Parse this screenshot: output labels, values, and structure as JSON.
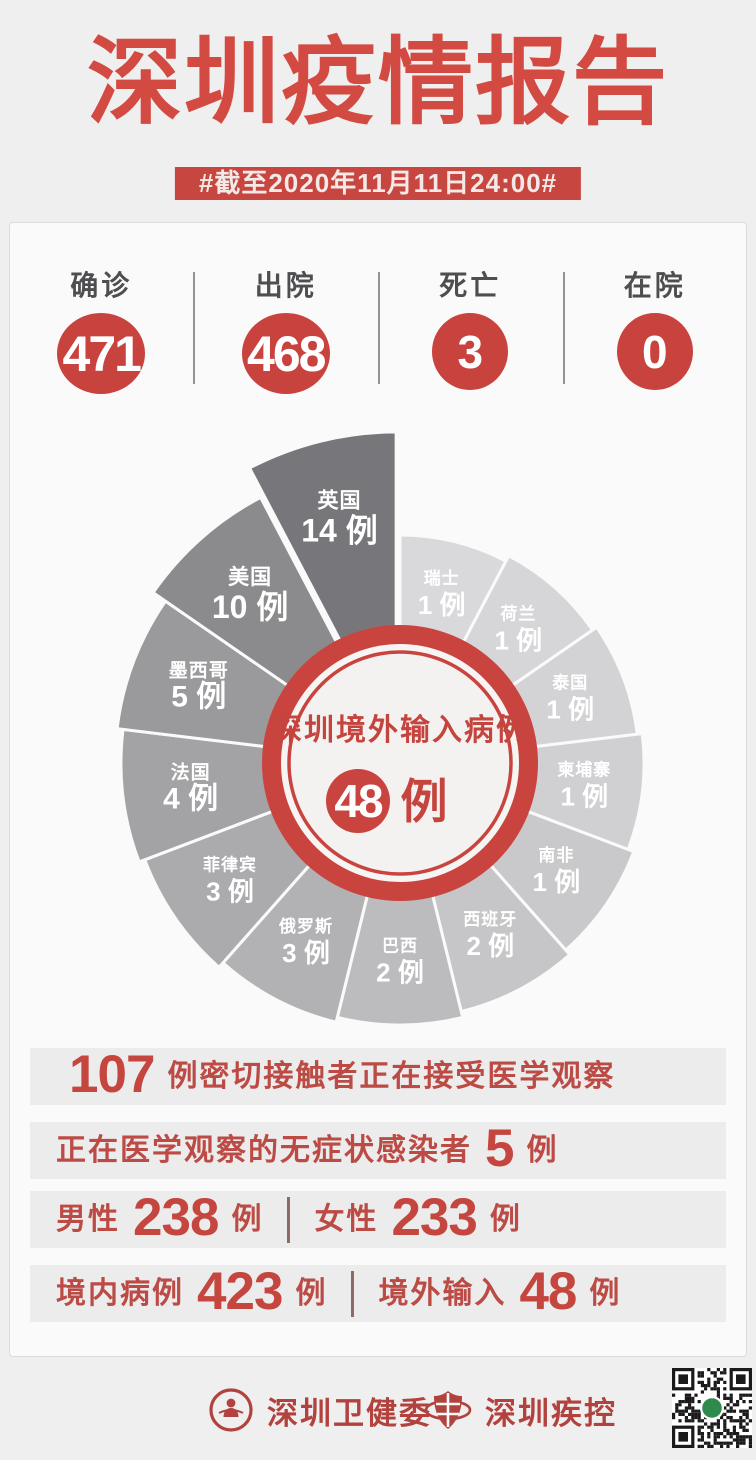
{
  "page": {
    "background": "#f0efef",
    "accent_red": "#c8423e",
    "title_red": "#d24a42"
  },
  "header": {
    "title": "深圳疫情报告",
    "date_banner": "#截至2020年11月11日24:00#"
  },
  "summary_stats": [
    {
      "label": "确诊",
      "value": "471",
      "size": "big"
    },
    {
      "label": "出院",
      "value": "468",
      "size": "big"
    },
    {
      "label": "死亡",
      "value": "3",
      "size": "small"
    },
    {
      "label": "在院",
      "value": "0",
      "size": "small"
    }
  ],
  "chart_data": {
    "type": "pie",
    "variant": "rose-fan, equal 27.7° slices, radius and darkness grow with value, largest slice exploded",
    "title": "深圳境外输入病例",
    "center_label": "深圳境外输入病例",
    "center_value": "48",
    "center_unit": "例",
    "unit": "例",
    "total": 48,
    "order": "clockwise from 12 o'clock",
    "slices": [
      {
        "name": "瑞士",
        "value": 1
      },
      {
        "name": "荷兰",
        "value": 1
      },
      {
        "name": "泰国",
        "value": 1
      },
      {
        "name": "柬埔寨",
        "value": 1
      },
      {
        "name": "南非",
        "value": 1
      },
      {
        "name": "西班牙",
        "value": 2
      },
      {
        "name": "巴西",
        "value": 2
      },
      {
        "name": "俄罗斯",
        "value": 3
      },
      {
        "name": "菲律宾",
        "value": 3
      },
      {
        "name": "法国",
        "value": 4
      },
      {
        "name": "墨西哥",
        "value": 5
      },
      {
        "name": "美国",
        "value": 10
      },
      {
        "name": "英国",
        "value": 14
      }
    ],
    "palette": [
      "#d9d9db",
      "#d6d6d8",
      "#d3d3d5",
      "#d0d0d2",
      "#c9c9cb",
      "#c6c6c8",
      "#bcbcbe",
      "#b2b2b4",
      "#ababad",
      "#a3a3a5",
      "#9a9a9c",
      "#8b8b8d",
      "#77777b"
    ],
    "ring_color": "#c9443f",
    "inner_fill": "#f3f2f0",
    "legend_position": "labels-inside-slices"
  },
  "detail_rows": [
    {
      "segments": [
        {
          "t": "107",
          "k": "num"
        },
        {
          "t": "例密切接触者正在接受医学观察",
          "k": "txt"
        }
      ]
    },
    {
      "segments": [
        {
          "t": "正在医学观察的无症状感染者",
          "k": "txt"
        },
        {
          "t": "5",
          "k": "num"
        },
        {
          "t": "例",
          "k": "txt"
        }
      ]
    },
    {
      "segments": [
        {
          "t": "男性",
          "k": "txt"
        },
        {
          "t": "238",
          "k": "num"
        },
        {
          "t": "例",
          "k": "txt"
        },
        {
          "t": "",
          "k": "div"
        },
        {
          "t": "女性",
          "k": "txt"
        },
        {
          "t": "233",
          "k": "num"
        },
        {
          "t": "例",
          "k": "txt"
        }
      ]
    },
    {
      "segments": [
        {
          "t": "境内病例",
          "k": "txt"
        },
        {
          "t": "423",
          "k": "num"
        },
        {
          "t": "例",
          "k": "txt"
        },
        {
          "t": "",
          "k": "div"
        },
        {
          "t": "境外输入",
          "k": "txt"
        },
        {
          "t": "48",
          "k": "num"
        },
        {
          "t": "例",
          "k": "txt"
        }
      ]
    }
  ],
  "footer": {
    "org1": {
      "label": "深圳卫健委",
      "icon": "health-commission-emblem-icon"
    },
    "org2": {
      "label": "深圳疾控",
      "icon": "cdc-shield-icon"
    },
    "qr": {
      "icon": "qr-code",
      "center_dot_color": "#2f8a4d"
    }
  }
}
